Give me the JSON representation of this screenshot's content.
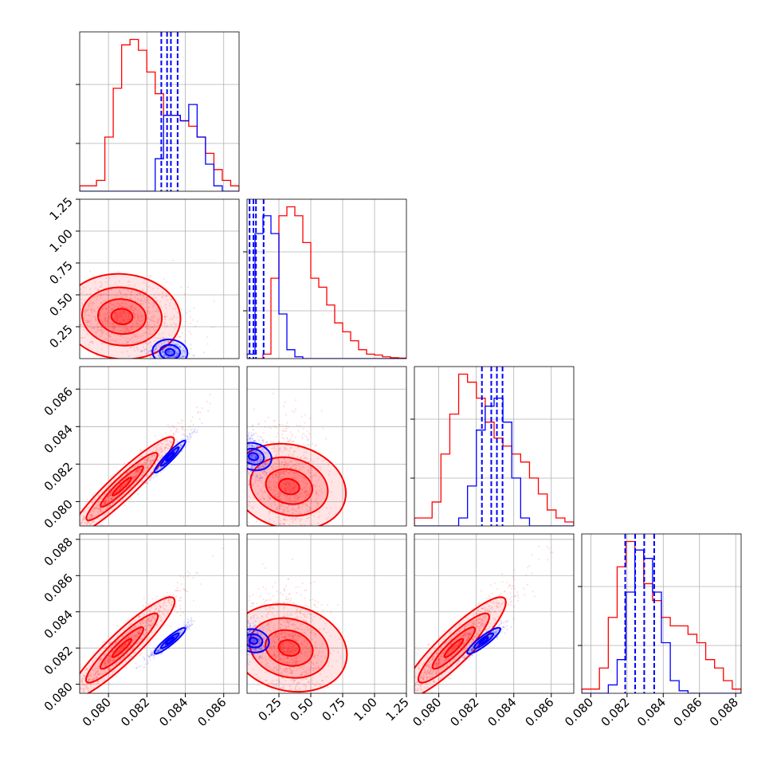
{
  "colors": {
    "red": "#ff0000",
    "blue": "#0000ff",
    "grid": "#b0b0b0",
    "frame": "#000000"
  },
  "chart_data": {
    "type": "corner",
    "grid": true,
    "n_params": 4,
    "series": [
      {
        "name": "",
        "color": "#ff0000"
      },
      {
        "name": "",
        "color": "#0000ff"
      }
    ],
    "ranges": [
      [
        0.0785,
        0.0868
      ],
      [
        0.0,
        1.25
      ],
      [
        0.0787,
        0.0872
      ],
      [
        0.0795,
        0.0883
      ]
    ],
    "x_tick_labels": [
      [
        "0.080",
        "0.082",
        "0.084",
        "0.086"
      ],
      [
        "0.25",
        "0.50",
        "0.75",
        "1.00",
        "1.25"
      ],
      [
        "0.080",
        "0.082",
        "0.084",
        "0.086"
      ],
      [
        "0.080",
        "0.082",
        "0.084",
        "0.086",
        "0.088"
      ]
    ],
    "y_tick_labels": {
      "row2": [
        "0.25",
        "0.50",
        "0.75",
        "1.00",
        "1.25"
      ],
      "row3": [
        "0.080",
        "0.082",
        "0.084",
        "0.086"
      ],
      "row4": [
        "0.080",
        "0.082",
        "0.084",
        "0.086",
        "0.088"
      ]
    },
    "diagonal_histograms": [
      {
        "red_counts": [
          1,
          1,
          2,
          10,
          19,
          27,
          28,
          26,
          22,
          18,
          14,
          14,
          13,
          12,
          10,
          7,
          4,
          2,
          1
        ],
        "blue_counts": [
          0,
          0,
          0,
          0,
          0,
          0,
          0,
          0,
          0,
          6,
          14,
          14,
          13,
          16,
          10,
          5,
          1,
          0,
          0
        ],
        "blue_quantile_lines": [
          0.08275,
          0.08305,
          0.08325,
          0.0836
        ]
      },
      {
        "red_counts": [
          0,
          0,
          0.5,
          9,
          16,
          17,
          16,
          13,
          9,
          8,
          6,
          4,
          3,
          2,
          1,
          0.5,
          0.4,
          0.2,
          0.1,
          0.05
        ],
        "blue_counts": [
          0.5,
          14,
          16,
          14,
          5,
          1,
          0.2,
          0,
          0,
          0,
          0,
          0,
          0,
          0,
          0,
          0,
          0,
          0,
          0,
          0
        ],
        "blue_quantile_lines": [
          0.02,
          0.05,
          0.07,
          0.13
        ]
      },
      {
        "red_counts": [
          1,
          1,
          3,
          9,
          14,
          19,
          18,
          16,
          13,
          11,
          10,
          9,
          8,
          6,
          4,
          2,
          1,
          0.5
        ],
        "blue_counts": [
          0,
          0,
          0,
          0,
          0,
          1,
          5,
          12,
          15,
          16,
          13,
          6,
          1,
          0,
          0,
          0,
          0,
          0
        ],
        "blue_quantile_lines": [
          0.0823,
          0.0828,
          0.0831,
          0.0834
        ]
      },
      {
        "red_counts": [
          0.5,
          0.5,
          3,
          9,
          15,
          18,
          17,
          13,
          11,
          9,
          8,
          8,
          7,
          6,
          4,
          3,
          1.5,
          0.5
        ],
        "blue_counts": [
          0,
          0,
          0,
          1,
          4,
          12,
          17,
          16,
          12,
          6,
          1.5,
          0.3,
          0,
          0,
          0,
          0,
          0,
          0
        ],
        "blue_quantile_lines": [
          0.0819,
          0.08245,
          0.08295,
          0.0835
        ]
      }
    ],
    "joint_centers": {
      "red": [
        0.0807,
        0.33,
        0.0808,
        0.082
      ],
      "blue": [
        0.0832,
        0.05,
        0.0824,
        0.0824
      ]
    }
  }
}
